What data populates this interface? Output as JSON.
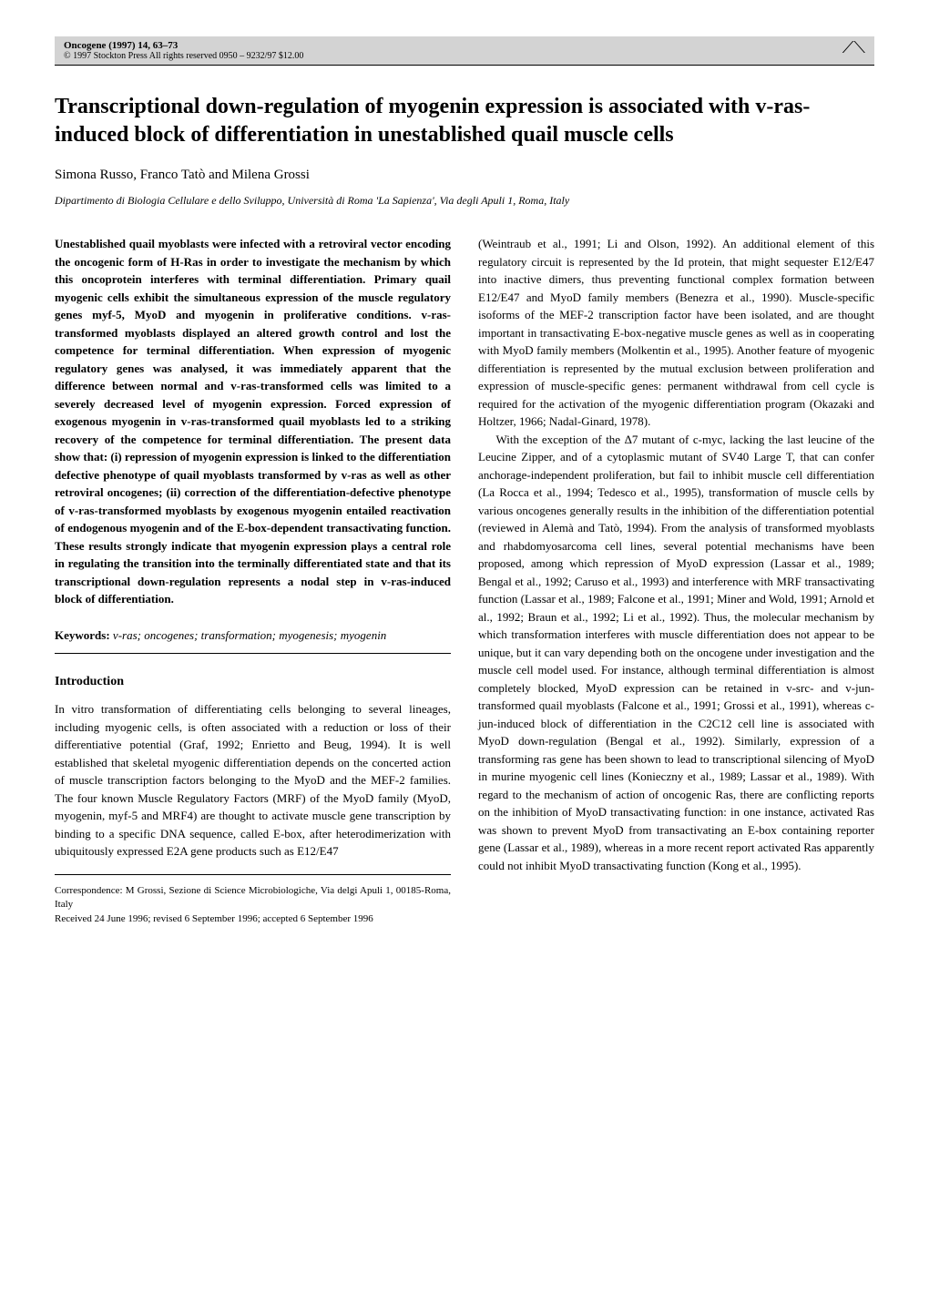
{
  "header": {
    "journal_line": "Oncogene (1997) 14, 63–73",
    "copyright_line": "© 1997 Stockton Press   All rights reserved 0950 – 9232/97 $12.00",
    "logo_glyph": "⟋⟍"
  },
  "title": "Transcriptional down-regulation of myogenin expression is associated with v-ras-induced block of differentiation in unestablished quail muscle cells",
  "authors": "Simona Russo, Franco Tatò and Milena Grossi",
  "affiliation": "Dipartimento di Biologia Cellulare e dello Sviluppo, Università di Roma 'La Sapienza', Via degli Apuli 1, Roma, Italy",
  "abstract": "Unestablished quail myoblasts were infected with a retroviral vector encoding the oncogenic form of H-Ras in order to investigate the mechanism by which this oncoprotein interferes with terminal differentiation. Primary quail myogenic cells exhibit the simultaneous expression of the muscle regulatory genes myf-5, MyoD and myogenin in proliferative conditions. v-ras-transformed myoblasts displayed an altered growth control and lost the competence for terminal differentiation. When expression of myogenic regulatory genes was analysed, it was immediately apparent that the difference between normal and v-ras-transformed cells was limited to a severely decreased level of myogenin expression. Forced expression of exogenous myogenin in v-ras-transformed quail myoblasts led to a striking recovery of the competence for terminal differentiation. The present data show that: (i) repression of myogenin expression is linked to the differentiation defective phenotype of quail myoblasts transformed by v-ras as well as other retroviral oncogenes; (ii) correction of the differentiation-defective phenotype of v-ras-transformed myoblasts by exogenous myogenin entailed reactivation of endogenous myogenin and of the E-box-dependent transactivating function. These results strongly indicate that myogenin expression plays a central role in regulating the transition into the terminally differentiated state and that its transcriptional down-regulation represents a nodal step in v-ras-induced block of differentiation.",
  "keywords": {
    "label": "Keywords:",
    "text": " v-ras; oncogenes; transformation; myogenesis; myogenin"
  },
  "section_introduction": "Introduction",
  "intro_left": "In vitro transformation of differentiating cells belonging to several lineages, including myogenic cells, is often associated with a reduction or loss of their differentiative potential (Graf, 1992; Enrietto and Beug, 1994). It is well established that skeletal myogenic differentiation depends on the concerted action of muscle transcription factors belonging to the MyoD and the MEF-2 families. The four known Muscle Regulatory Factors (MRF) of the MyoD family (MyoD, myogenin, myf-5 and MRF4) are thought to activate muscle gene transcription by binding to a specific DNA sequence, called E-box, after heterodimerization with ubiquitously expressed E2A gene products such as E12/E47",
  "correspondence": {
    "line1": "Correspondence: M Grossi, Sezione di Science Microbiologiche, Via delgi Apuli 1, 00185-Roma, Italy",
    "line2": "Received 24 June 1996; revised 6 September 1996; accepted 6 September 1996"
  },
  "right_column_p1": "(Weintraub et al., 1991; Li and Olson, 1992). An additional element of this regulatory circuit is represented by the Id protein, that might sequester E12/E47 into inactive dimers, thus preventing functional complex formation between E12/E47 and MyoD family members (Benezra et al., 1990). Muscle-specific isoforms of the MEF-2 transcription factor have been isolated, and are thought important in transactivating E-box-negative muscle genes as well as in cooperating with MyoD family members (Molkentin et al., 1995). Another feature of myogenic differentiation is represented by the mutual exclusion between proliferation and expression of muscle-specific genes: permanent withdrawal from cell cycle is required for the activation of the myogenic differentiation program (Okazaki and Holtzer, 1966; Nadal-Ginard, 1978).",
  "right_column_p2": "With the exception of the Δ7 mutant of c-myc, lacking the last leucine of the Leucine Zipper, and of a cytoplasmic mutant of SV40 Large T, that can confer anchorage-independent proliferation, but fail to inhibit muscle cell differentiation (La Rocca et al., 1994; Tedesco et al., 1995), transformation of muscle cells by various oncogenes generally results in the inhibition of the differentiation potential (reviewed in Alemà and Tatò, 1994). From the analysis of transformed myoblasts and rhabdomyosarcoma cell lines, several potential mechanisms have been proposed, among which repression of MyoD expression (Lassar et al., 1989; Bengal et al., 1992; Caruso et al., 1993) and interference with MRF transactivating function (Lassar et al., 1989; Falcone et al., 1991; Miner and Wold, 1991; Arnold et al., 1992; Braun et al., 1992; Li et al., 1992). Thus, the molecular mechanism by which transformation interferes with muscle differentiation does not appear to be unique, but it can vary depending both on the oncogene under investigation and the muscle cell model used. For instance, although terminal differentiation is almost completely blocked, MyoD expression can be retained in v-src- and v-jun-transformed quail myoblasts (Falcone et al., 1991; Grossi et al., 1991), whereas c-jun-induced block of differentiation in the C2C12 cell line is associated with MyoD down-regulation (Bengal et al., 1992). Similarly, expression of a transforming ras gene has been shown to lead to transcriptional silencing of MyoD in murine myogenic cell lines (Konieczny et al., 1989; Lassar et al., 1989). With regard to the mechanism of action of oncogenic Ras, there are conflicting reports on the inhibition of MyoD transactivating function: in one instance, activated Ras was shown to prevent MyoD from transactivating an E-box containing reporter gene (Lassar et al., 1989), whereas in a more recent report activated Ras apparently could not inhibit MyoD transactivating function (Kong et al., 1995)."
}
